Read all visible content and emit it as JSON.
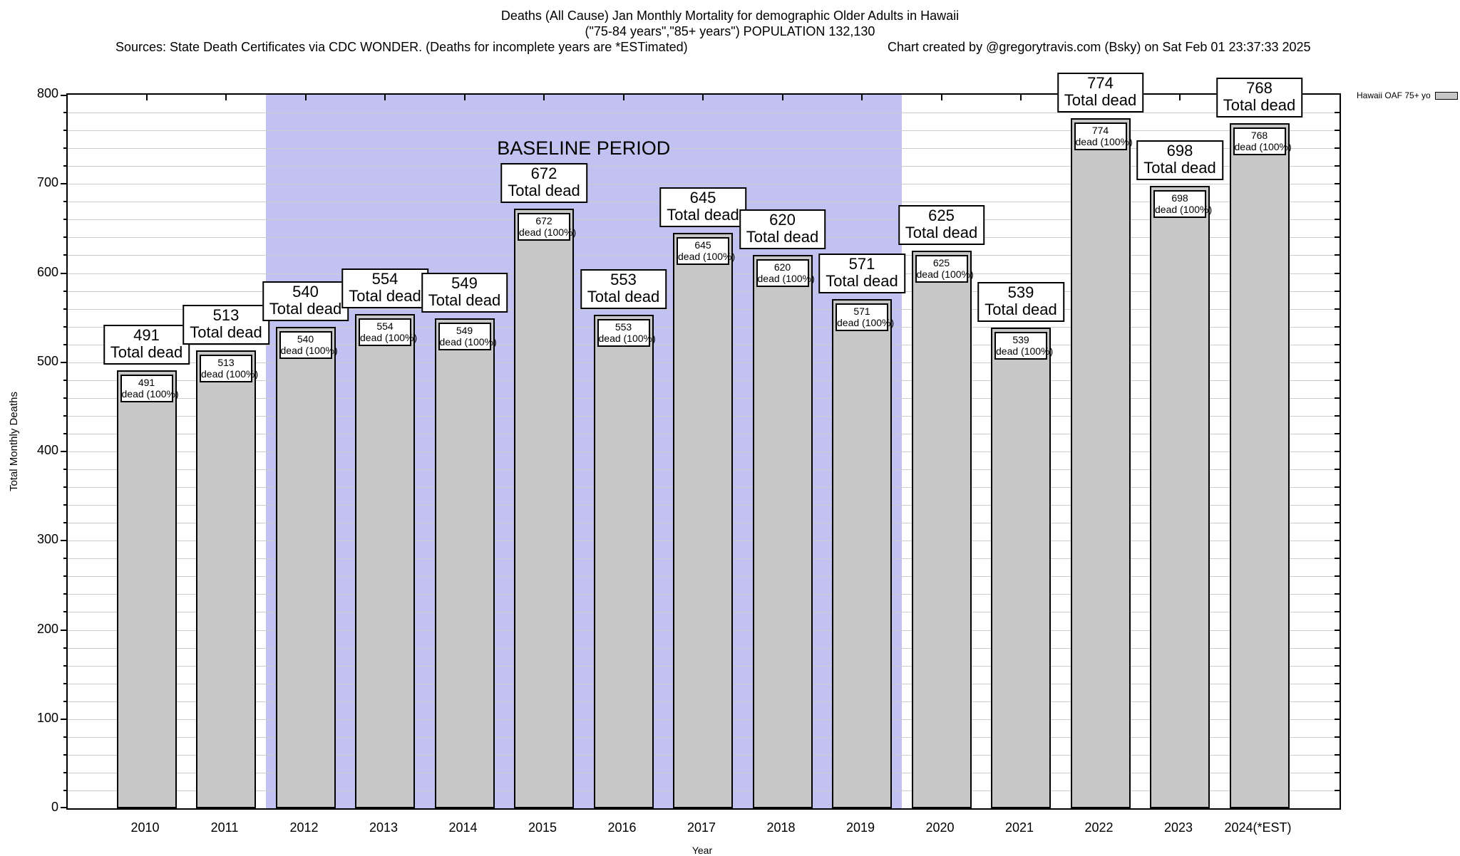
{
  "header": {
    "line1": "Deaths (All Cause) Jan Monthly Mortality for demographic Older Adults in Hawaii",
    "line2": "(\"75-84 years\",\"85+ years\") POPULATION 132,130",
    "line3_left": "Sources: State Death Certificates via CDC WONDER. (Deaths for incomplete years are *ESTimated)",
    "line3_right": "Chart created by @gregorytravis.com (Bsky) on Sat Feb 01 23:37:33 2025"
  },
  "legend": {
    "label": "Hawaii OAF 75+ yo",
    "swatch_color": "#c7c7c7",
    "position": "top-right"
  },
  "chart_data": {
    "type": "bar",
    "title": "Deaths (All Cause) Jan Monthly Mortality for demographic Older Adults in Hawaii",
    "categories": [
      "2010",
      "2011",
      "2012",
      "2013",
      "2014",
      "2015",
      "2016",
      "2017",
      "2018",
      "2019",
      "2020",
      "2021",
      "2022",
      "2023",
      "2024(*EST)"
    ],
    "values": [
      491,
      513,
      540,
      554,
      549,
      672,
      553,
      645,
      620,
      571,
      625,
      539,
      774,
      698,
      768
    ],
    "series_name": "Hawaii OAF 75+ yo",
    "xlabel": "Year",
    "ylabel": "Total Monthly Deaths",
    "ylim": [
      0,
      800
    ],
    "ytick_major": 100,
    "ygrid_minor": 20,
    "grid": true,
    "legend_position": "top-right",
    "bar_top_label": "Total dead",
    "bar_inner_label": "dead (100%)",
    "bar_color": "#c7c7c7",
    "baseline_band": {
      "label": "BASELINE PERIOD",
      "from": "2012",
      "to": "2019",
      "color": "#c2c2f2"
    }
  }
}
